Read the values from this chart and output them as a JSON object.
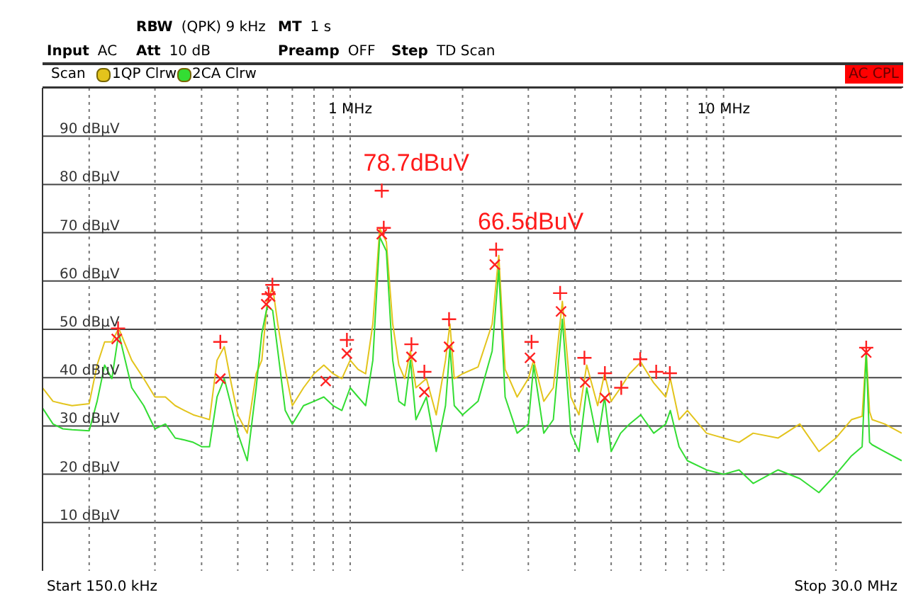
{
  "chart_data": {
    "type": "line",
    "annotations": [
      "RBW (QPK) 9 kHz",
      "MT 1 s",
      "Input AC",
      "Att 10 dB",
      "Preamp OFF",
      "Step TD Scan",
      "Scan",
      "AC CPL",
      "Start 150.0 kHz",
      "Stop 30.0 MHz",
      {
        "text": "78.7dBuV",
        "x": 1.215,
        "y": 78.7
      },
      {
        "text": "66.5dBuV",
        "x": 2.46,
        "y": 66.5
      }
    ],
    "x": [
      0.15,
      0.16,
      0.17,
      0.18,
      0.2,
      0.21,
      0.22,
      0.23,
      0.24,
      0.26,
      0.28,
      0.3,
      0.32,
      0.34,
      0.36,
      0.38,
      0.4,
      0.42,
      0.44,
      0.46,
      0.48,
      0.5,
      0.53,
      0.56,
      0.58,
      0.6,
      0.62,
      0.64,
      0.67,
      0.7,
      0.75,
      0.8,
      0.85,
      0.9,
      0.95,
      1.0,
      1.05,
      1.1,
      1.15,
      1.2,
      1.25,
      1.3,
      1.35,
      1.4,
      1.45,
      1.5,
      1.6,
      1.7,
      1.8,
      1.85,
      1.9,
      2.0,
      2.2,
      2.4,
      2.5,
      2.6,
      2.8,
      3.0,
      3.1,
      3.3,
      3.5,
      3.7,
      3.9,
      4.1,
      4.3,
      4.6,
      4.8,
      5.0,
      5.3,
      5.6,
      6.0,
      6.5,
      7.0,
      7.2,
      7.6,
      8,
      9,
      10,
      11,
      12,
      14,
      16,
      18,
      20,
      22,
      23.5,
      24.1,
      24.6,
      25,
      27,
      30
    ],
    "series": [
      {
        "name": "1QP Clrw",
        "color": "#e3c41c",
        "values": [
          37.9,
          35.1,
          34.6,
          34.2,
          34.6,
          42.6,
          47.4,
          47.4,
          50.2,
          43.6,
          39.8,
          36.0,
          36.0,
          34.2,
          33.2,
          32.3,
          31.8,
          31.3,
          43.6,
          46.4,
          38.9,
          32.3,
          28.5,
          40.8,
          43.6,
          55.8,
          58.7,
          51.1,
          41.7,
          34.2,
          37.9,
          40.8,
          42.6,
          40.8,
          39.8,
          43.6,
          41.7,
          40.8,
          51.1,
          70.9,
          68.1,
          51.1,
          42.6,
          39.8,
          45.5,
          37.9,
          39.8,
          32.3,
          43.6,
          51.1,
          39.8,
          40.8,
          42.2,
          51.1,
          65.3,
          41.7,
          36.0,
          39.8,
          43.6,
          35.1,
          37.9,
          55.8,
          36.0,
          32.3,
          42.6,
          34.2,
          40.8,
          35.1,
          37.9,
          40.8,
          43.2,
          38.9,
          36.0,
          39.8,
          31.3,
          33.2,
          28.5,
          27.5,
          26.6,
          28.5,
          27.5,
          30.4,
          24.7,
          27.5,
          31.3,
          32.0,
          45.5,
          33.0,
          31.3,
          30.4,
          28.5
        ]
      },
      {
        "name": "2CA Clrw",
        "color": "#33dd33",
        "values": [
          33.7,
          30.4,
          29.4,
          29.2,
          29.0,
          35.1,
          42.6,
          39.8,
          49.2,
          37.9,
          34.2,
          29.4,
          30.4,
          27.5,
          27.1,
          26.6,
          25.7,
          25.7,
          36.0,
          39.8,
          34.2,
          28.5,
          22.8,
          37.9,
          49.2,
          54.9,
          53.9,
          45.5,
          33.2,
          30.4,
          34.2,
          35.1,
          36.0,
          34.2,
          33.2,
          37.9,
          36.0,
          34.2,
          43.6,
          69.1,
          66.2,
          43.6,
          35.1,
          34.2,
          43.6,
          31.3,
          36.0,
          24.7,
          34.2,
          46.4,
          34.2,
          32.3,
          35.1,
          45.5,
          62.5,
          36.0,
          28.5,
          30.4,
          42.6,
          28.5,
          31.3,
          52.1,
          28.5,
          24.7,
          37.9,
          26.6,
          36.0,
          24.7,
          28.5,
          30.4,
          32.3,
          28.5,
          30.4,
          33.2,
          25.7,
          22.8,
          20.9,
          20.0,
          20.9,
          18.1,
          20.9,
          19.1,
          16.2,
          20.0,
          23.8,
          25.7,
          45.0,
          26.6,
          26.1,
          24.7,
          22.8
        ]
      },
      {
        "type": "scatter",
        "marker": "plus",
        "color": "#ff2020",
        "x": [
          0.239,
          0.449,
          0.605,
          0.619,
          0.98,
          1.215,
          1.23,
          1.459,
          1.58,
          1.84,
          2.46,
          3.06,
          3.65,
          4.24,
          4.81,
          5.32,
          5.98,
          6.6,
          7.18,
          24.1
        ],
        "values": [
          50.2,
          47.4,
          57.3,
          59.2,
          47.8,
          78.7,
          71.0,
          46.9,
          41.2,
          52.1,
          66.5,
          47.4,
          57.5,
          44.1,
          40.9,
          37.9,
          43.8,
          41.2,
          40.9,
          46.2
        ]
      },
      {
        "type": "scatter",
        "marker": "cross",
        "color": "#ff2020",
        "x": [
          0.237,
          0.449,
          0.596,
          0.61,
          0.86,
          0.98,
          1.215,
          1.459,
          1.58,
          1.84,
          2.44,
          3.03,
          3.67,
          4.26,
          4.81,
          24.1
        ],
        "values": [
          48.0,
          39.8,
          55.2,
          56.8,
          39.3,
          45.0,
          69.7,
          44.3,
          37.0,
          46.4,
          63.4,
          44.1,
          53.7,
          39.0,
          35.8,
          45.2
        ]
      }
    ],
    "log": "x",
    "xlim": [
      0.15,
      30
    ],
    "xticks": [
      {
        "value": 0.2,
        "label": null
      },
      {
        "value": 0.3,
        "label": null
      },
      {
        "value": 0.4,
        "label": null
      },
      {
        "value": 0.5,
        "label": null
      },
      {
        "value": 0.6,
        "label": null
      },
      {
        "value": 0.7,
        "label": null
      },
      {
        "value": 0.8,
        "label": null
      },
      {
        "value": 0.9,
        "label": null
      },
      {
        "value": 1,
        "label": "1 MHz"
      },
      {
        "value": 2,
        "label": null
      },
      {
        "value": 3,
        "label": null
      },
      {
        "value": 4,
        "label": null
      },
      {
        "value": 5,
        "label": null
      },
      {
        "value": 6,
        "label": null
      },
      {
        "value": 7,
        "label": null
      },
      {
        "value": 8,
        "label": null
      },
      {
        "value": 9,
        "label": null
      },
      {
        "value": 10,
        "label": "10 MHz"
      },
      {
        "value": 20,
        "label": null
      }
    ],
    "ylim": [
      0,
      100
    ],
    "yticks": [
      {
        "value": 10,
        "label": "10 dBµV"
      },
      {
        "value": 20,
        "label": "20 dBµV"
      },
      {
        "value": 30,
        "label": "30 dBµV"
      },
      {
        "value": 40,
        "label": "40 dBµV"
      },
      {
        "value": 50,
        "label": "50 dBµV"
      },
      {
        "value": 60,
        "label": "60 dBµV"
      },
      {
        "value": 70,
        "label": "70 dBµV"
      },
      {
        "value": 80,
        "label": "80 dBµV"
      },
      {
        "value": 90,
        "label": "90 dBµV"
      }
    ],
    "grid": true,
    "legend": "top left",
    "marker": "none",
    "line_style": "solid"
  }
}
